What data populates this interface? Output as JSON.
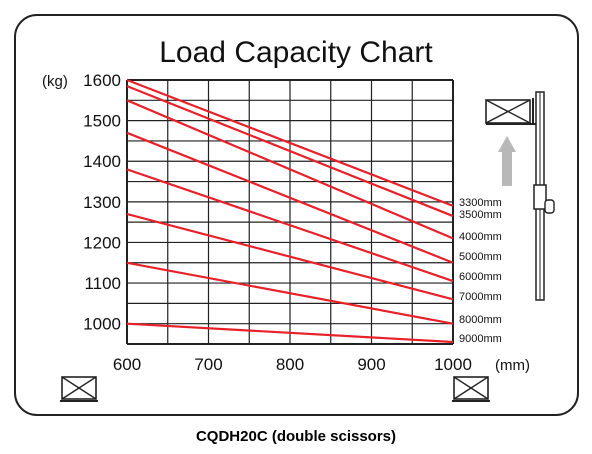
{
  "caption": "CQDH20C (double scissors)",
  "colors": {
    "series_line": "#e8202a",
    "grid": "#222222",
    "frame": "#222222",
    "arrow": "#b8b8b8"
  },
  "icons": [
    "pallet-load-icon",
    "pallet-load-icon",
    "forklift-mast-icon",
    "lift-arrow-icon"
  ],
  "chart_data": {
    "type": "line",
    "title": "Load Capacity Chart",
    "x_unit": "(mm)",
    "y_unit": "(kg)",
    "x_ticks": [
      600,
      700,
      800,
      900,
      1000
    ],
    "y_ticks": [
      1000,
      1100,
      1200,
      1300,
      1400,
      1500,
      1600
    ],
    "xlim": [
      600,
      1000
    ],
    "ylim": [
      950,
      1600
    ],
    "grid": true,
    "x": [
      600,
      1000
    ],
    "series": [
      {
        "name": "3300mm",
        "values": [
          1600,
          1290
        ]
      },
      {
        "name": "3500mm",
        "values": [
          1585,
          1265
        ]
      },
      {
        "name": "4000mm",
        "values": [
          1550,
          1210
        ]
      },
      {
        "name": "5000mm",
        "values": [
          1470,
          1150
        ]
      },
      {
        "name": "6000mm",
        "values": [
          1380,
          1105
        ]
      },
      {
        "name": "7000mm",
        "values": [
          1270,
          1060
        ]
      },
      {
        "name": "8000mm",
        "values": [
          1150,
          1000
        ]
      },
      {
        "name": "9000mm",
        "values": [
          1000,
          955
        ]
      }
    ]
  }
}
